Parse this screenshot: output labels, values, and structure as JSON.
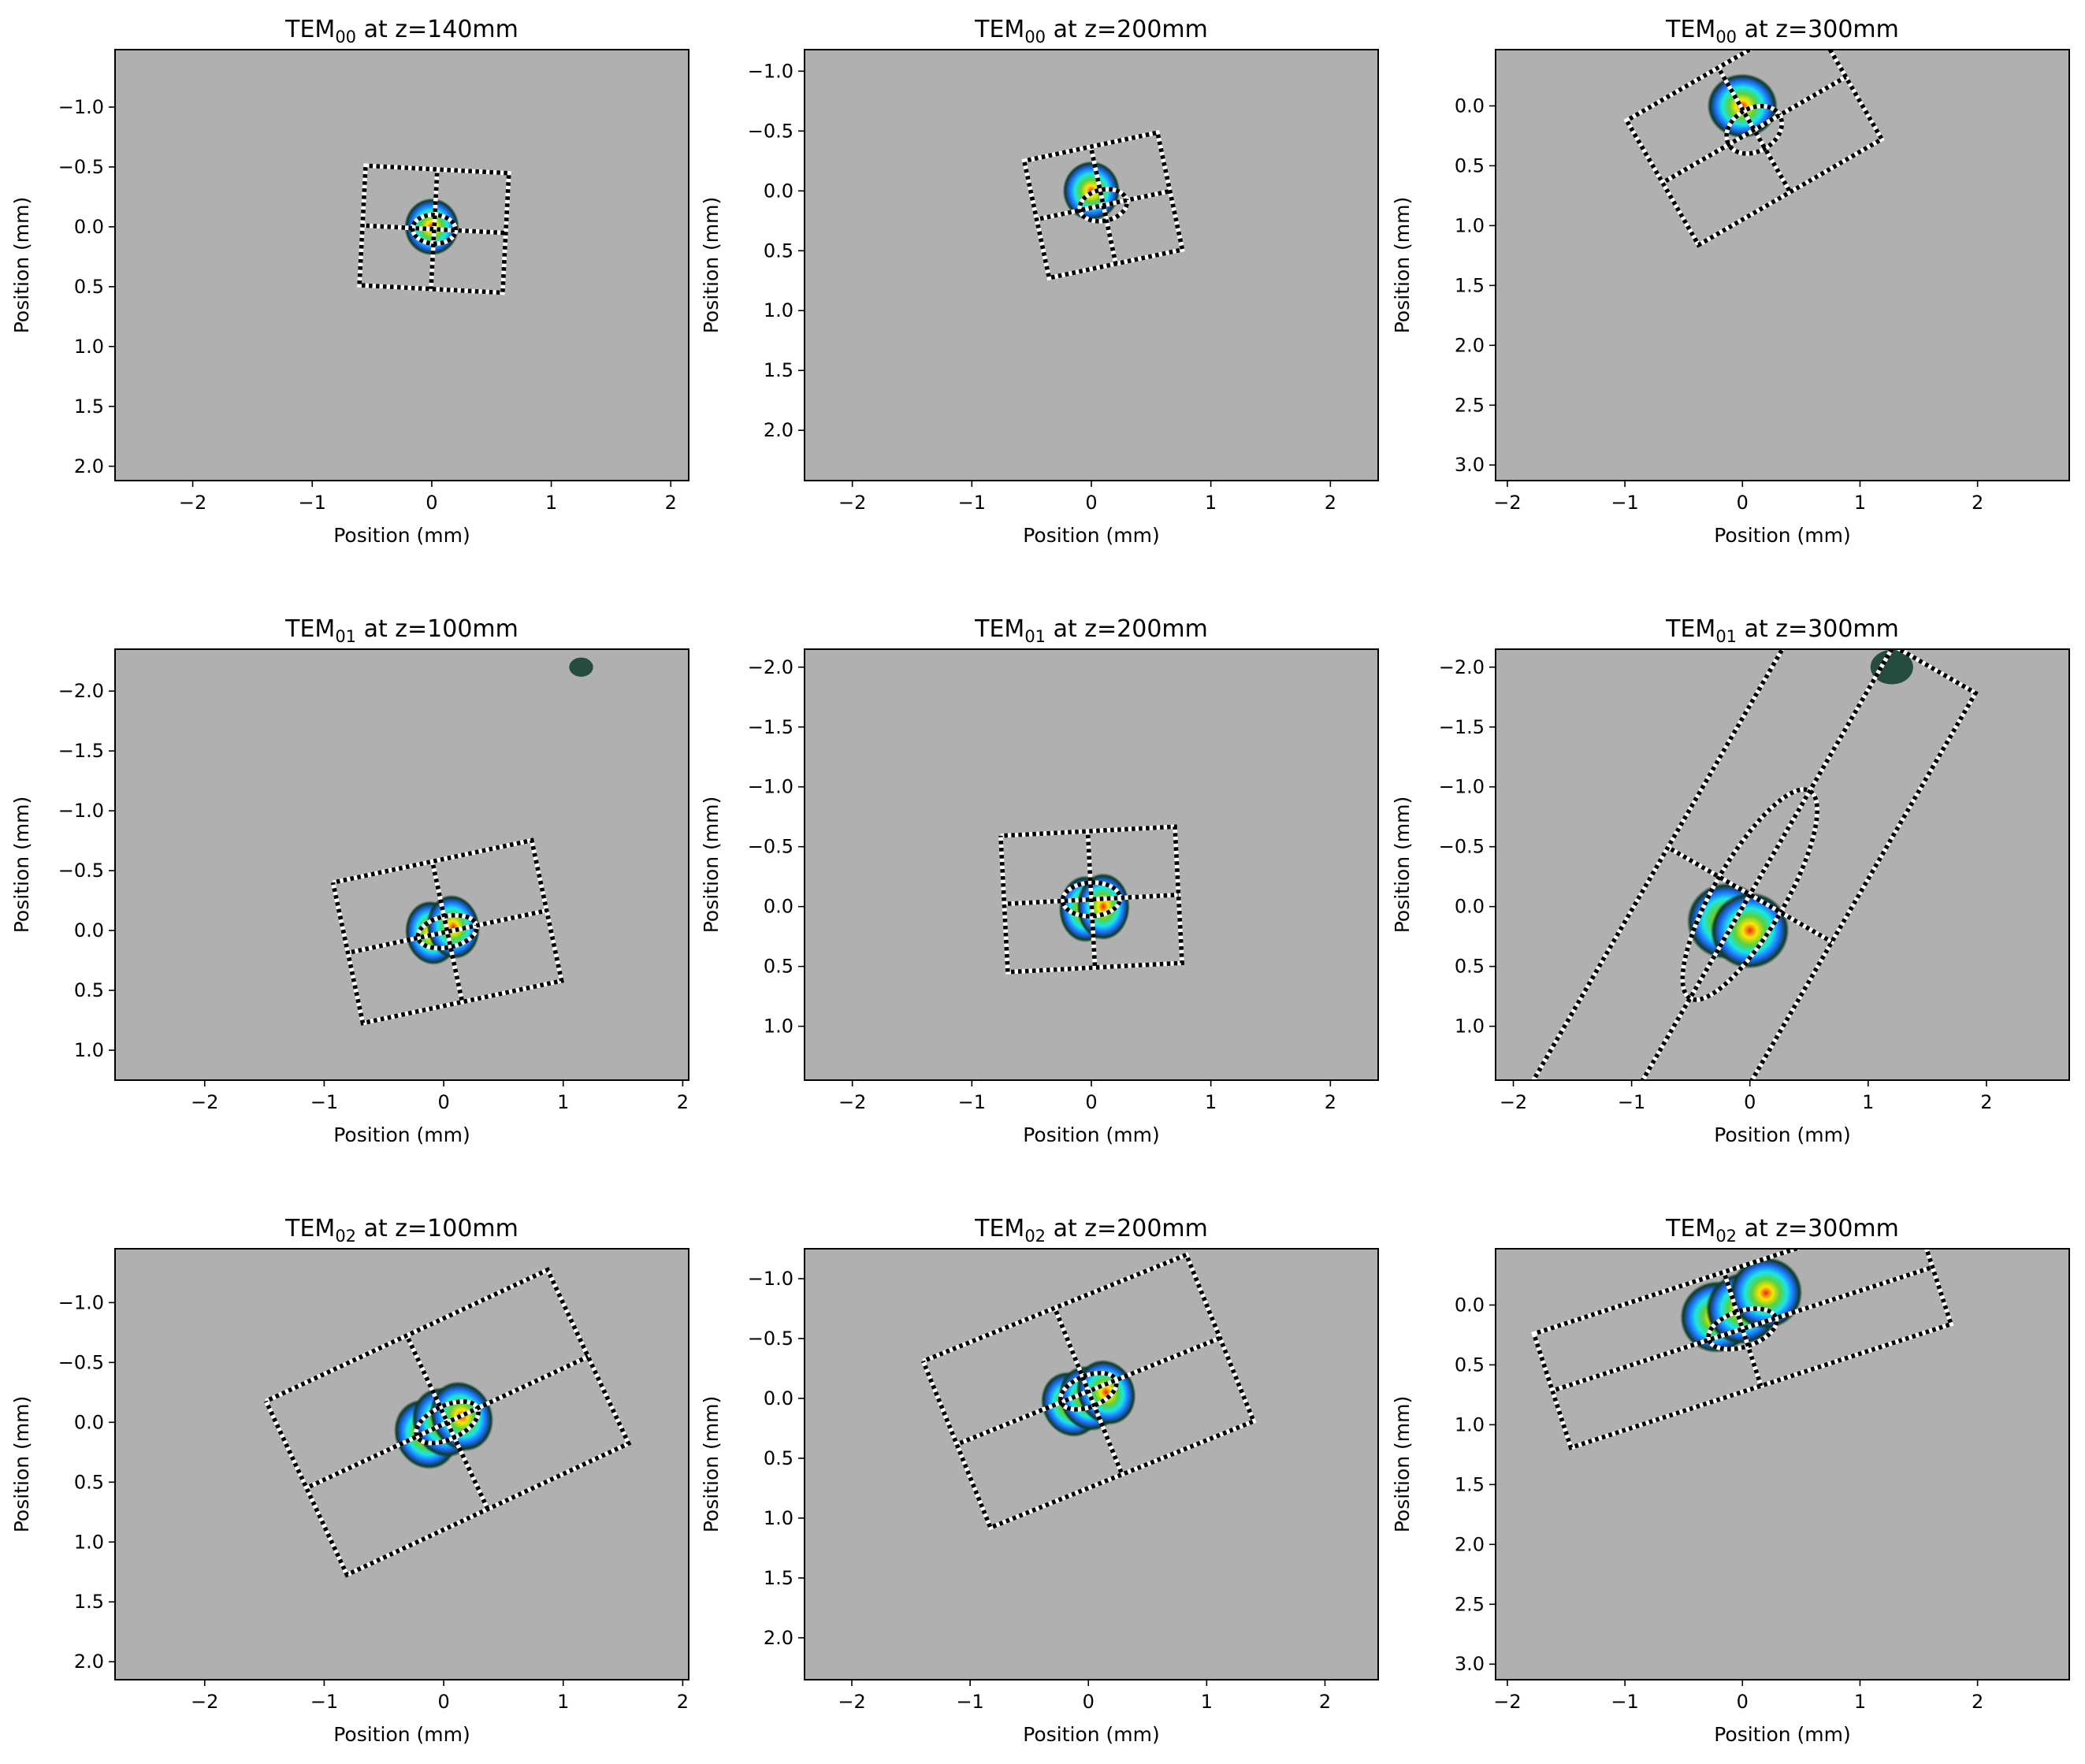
{
  "figure": {
    "colors": {
      "background": "#b0b0b0",
      "overlay_dark": "#000000",
      "overlay_light": "#ffffff",
      "beam_outer": "#0d3b2a",
      "beam_blue": "#1e6fff",
      "beam_cyan": "#19e6e6",
      "beam_green": "#5ad13c",
      "beam_yellow": "#ffe600",
      "beam_red": "#e8281e"
    }
  },
  "chart_data": [
    {
      "type": "heatmap",
      "title": {
        "main": "TEM",
        "sub": "00",
        "rest": " at z=140mm"
      },
      "xlabel": "Position (mm)",
      "ylabel": "Position (mm)",
      "xlim": [
        -2.65,
        2.15
      ],
      "ylim": [
        2.12,
        -1.48
      ],
      "xticks": [
        -2,
        -1,
        0,
        1,
        2
      ],
      "xticklabels": [
        "−2",
        "−1",
        "0",
        "1",
        "2"
      ],
      "yticks": [
        -1.0,
        -0.5,
        0.0,
        0.5,
        1.0,
        1.5,
        2.0
      ],
      "yticklabels": [
        "−1.0",
        "−0.5",
        "0.0",
        "0.5",
        "1.0",
        "1.5",
        "2.0"
      ],
      "beam": {
        "lobes": [
          [
            0.0,
            0.0
          ]
        ],
        "rx": 0.23,
        "ry": 0.24,
        "angle": 0
      },
      "box": {
        "cx": 0.02,
        "cy": 0.02,
        "hw": 0.6,
        "hh": 0.5,
        "angle": 3
      },
      "ellipse": {
        "rx": 0.18,
        "ry": 0.12
      }
    },
    {
      "type": "heatmap",
      "title": {
        "main": "TEM",
        "sub": "00",
        "rest": " at z=200mm"
      },
      "xlabel": "Position (mm)",
      "ylabel": "Position (mm)",
      "xlim": [
        -2.4,
        2.4
      ],
      "ylim": [
        2.42,
        -1.18
      ],
      "xticks": [
        -2,
        -1,
        0,
        1,
        2
      ],
      "xticklabels": [
        "−2",
        "−1",
        "0",
        "1",
        "2"
      ],
      "yticks": [
        -1.0,
        -0.5,
        0.0,
        0.5,
        1.0,
        1.5,
        2.0
      ],
      "yticklabels": [
        "−1.0",
        "−0.5",
        "0.0",
        "0.5",
        "1.0",
        "1.5",
        "2.0"
      ],
      "beam": {
        "lobes": [
          [
            0.0,
            0.0
          ]
        ],
        "rx": 0.24,
        "ry": 0.25,
        "angle": 0
      },
      "box": {
        "cx": 0.1,
        "cy": 0.12,
        "hw": 0.57,
        "hh": 0.5,
        "angle": -12
      },
      "ellipse": {
        "rx": 0.2,
        "ry": 0.13
      }
    },
    {
      "type": "heatmap",
      "title": {
        "main": "TEM",
        "sub": "00",
        "rest": " at z=300mm"
      },
      "xlabel": "Position (mm)",
      "ylabel": "Position (mm)",
      "xlim": [
        -2.1,
        2.78
      ],
      "ylim": [
        3.13,
        -0.47
      ],
      "xticks": [
        -2,
        -1,
        0,
        1,
        2
      ],
      "xticklabels": [
        "−2",
        "−1",
        "0",
        "1",
        "2"
      ],
      "yticks": [
        0.0,
        0.5,
        1.0,
        1.5,
        2.0,
        2.5,
        3.0
      ],
      "yticklabels": [
        "0.0",
        "0.5",
        "1.0",
        "1.5",
        "2.0",
        "2.5",
        "3.0"
      ],
      "beam": {
        "lobes": [
          [
            0.0,
            0.0
          ]
        ],
        "rx": 0.3,
        "ry": 0.27,
        "angle": 0
      },
      "box": {
        "cx": 0.1,
        "cy": 0.2,
        "hw": 0.9,
        "hh": 0.6,
        "angle": -30
      },
      "ellipse": {
        "rx": 0.25,
        "ry": 0.18
      }
    },
    {
      "type": "heatmap",
      "title": {
        "main": "TEM",
        "sub": "01",
        "rest": " at z=100mm"
      },
      "xlabel": "Position (mm)",
      "ylabel": "Position (mm)",
      "xlim": [
        -2.75,
        2.05
      ],
      "ylim": [
        1.25,
        -2.35
      ],
      "xticks": [
        -2,
        -1,
        0,
        1,
        2
      ],
      "xticklabels": [
        "−2",
        "−1",
        "0",
        "1",
        "2"
      ],
      "yticks": [
        -2.0,
        -1.5,
        -1.0,
        -0.5,
        0.0,
        0.5,
        1.0
      ],
      "yticklabels": [
        "−2.0",
        "−1.5",
        "−1.0",
        "−0.5",
        "0.0",
        "0.5",
        "1.0"
      ],
      "beam": {
        "lobes": [
          [
            -0.1,
            0.02
          ],
          [
            0.08,
            -0.03
          ]
        ],
        "rx": 0.3,
        "ry": 0.27,
        "angle": -10
      },
      "box": {
        "cx": 0.03,
        "cy": 0.01,
        "hw": 0.85,
        "hh": 0.6,
        "angle": -12
      },
      "ellipse": {
        "rx": 0.25,
        "ry": 0.13
      },
      "ghost": {
        "x": 1.15,
        "y": -2.2,
        "r": 0.1
      }
    },
    {
      "type": "heatmap",
      "title": {
        "main": "TEM",
        "sub": "01",
        "rest": " at z=200mm"
      },
      "xlabel": "Position (mm)",
      "ylabel": "Position (mm)",
      "xlim": [
        -2.4,
        2.4
      ],
      "ylim": [
        1.45,
        -2.15
      ],
      "xticks": [
        -2,
        -1,
        0,
        1,
        2
      ],
      "xticklabels": [
        "−2",
        "−1",
        "0",
        "1",
        "2"
      ],
      "yticks": [
        -2.0,
        -1.5,
        -1.0,
        -0.5,
        0.0,
        0.5,
        1.0
      ],
      "yticklabels": [
        "−2.0",
        "−1.5",
        "−1.0",
        "−0.5",
        "0.0",
        "0.5",
        "1.0"
      ],
      "beam": {
        "lobes": [
          [
            -0.05,
            0.02
          ],
          [
            0.1,
            0.0
          ]
        ],
        "rx": 0.3,
        "ry": 0.28,
        "angle": 0
      },
      "box": {
        "cx": 0.0,
        "cy": -0.06,
        "hw": 0.73,
        "hh": 0.57,
        "angle": -3
      },
      "ellipse": {
        "rx": 0.24,
        "ry": 0.14
      }
    },
    {
      "type": "heatmap",
      "title": {
        "main": "TEM",
        "sub": "01",
        "rest": " at z=300mm"
      },
      "xlabel": "Position (mm)",
      "ylabel": "Position (mm)",
      "xlim": [
        -2.15,
        2.7
      ],
      "ylim": [
        1.45,
        -2.15
      ],
      "xticks": [
        -2,
        -1,
        0,
        1,
        2
      ],
      "xticklabels": [
        "−2",
        "−1",
        "0",
        "1",
        "2"
      ],
      "yticks": [
        -2.0,
        -1.5,
        -1.0,
        -0.5,
        0.0,
        0.5,
        1.0
      ],
      "yticklabels": [
        "−2.0",
        "−1.5",
        "−1.0",
        "−0.5",
        "0.0",
        "0.5",
        "1.0"
      ],
      "beam": {
        "lobes": [
          [
            -0.2,
            0.12
          ],
          [
            0.0,
            0.2
          ]
        ],
        "rx": 0.45,
        "ry": 0.32,
        "angle": -10
      },
      "box": {
        "cx": 0.0,
        "cy": -0.1,
        "hw": 0.8,
        "hh": 2.4,
        "angle": 30
      },
      "ellipse": {
        "rx": 0.3,
        "ry": 1.0
      },
      "ghost": {
        "x": 1.2,
        "y": -2.0,
        "r": 0.18
      }
    },
    {
      "type": "heatmap",
      "title": {
        "main": "TEM",
        "sub": "02",
        "rest": " at z=100mm"
      },
      "xlabel": "Position (mm)",
      "ylabel": "Position (mm)",
      "xlim": [
        -2.75,
        2.05
      ],
      "ylim": [
        2.15,
        -1.45
      ],
      "xticks": [
        -2,
        -1,
        0,
        1,
        2
      ],
      "xticklabels": [
        "−2",
        "−1",
        "0",
        "1",
        "2"
      ],
      "yticks": [
        -1.0,
        -0.5,
        0.0,
        0.5,
        1.0,
        1.5,
        2.0
      ],
      "yticklabels": [
        "−1.0",
        "−0.5",
        "0.0",
        "0.5",
        "1.0",
        "1.5",
        "2.0"
      ],
      "beam": {
        "lobes": [
          [
            -0.15,
            0.1
          ],
          [
            0.0,
            0.0
          ],
          [
            0.15,
            -0.05
          ]
        ],
        "rx": 0.35,
        "ry": 0.3,
        "angle": -25
      },
      "box": {
        "cx": 0.03,
        "cy": 0.0,
        "hw": 1.3,
        "hh": 0.8,
        "angle": -25
      },
      "ellipse": {
        "rx": 0.28,
        "ry": 0.14
      }
    },
    {
      "type": "heatmap",
      "title": {
        "main": "TEM",
        "sub": "02",
        "rest": " at z=200mm"
      },
      "xlabel": "Position (mm)",
      "ylabel": "Position (mm)",
      "xlim": [
        -2.4,
        2.45
      ],
      "ylim": [
        2.35,
        -1.25
      ],
      "xticks": [
        -2,
        -1,
        0,
        1,
        2
      ],
      "xticklabels": [
        "−2",
        "−1",
        "0",
        "1",
        "2"
      ],
      "yticks": [
        -1.0,
        -0.5,
        0.0,
        0.5,
        1.0,
        1.5,
        2.0
      ],
      "yticklabels": [
        "−1.0",
        "−0.5",
        "0.0",
        "0.5",
        "1.0",
        "1.5",
        "2.0"
      ],
      "beam": {
        "lobes": [
          [
            -0.15,
            0.05
          ],
          [
            0.0,
            0.0
          ],
          [
            0.15,
            -0.05
          ]
        ],
        "rx": 0.33,
        "ry": 0.28,
        "angle": -25
      },
      "box": {
        "cx": 0.0,
        "cy": -0.06,
        "hw": 1.2,
        "hh": 0.75,
        "angle": -22
      },
      "ellipse": {
        "rx": 0.25,
        "ry": 0.13
      }
    },
    {
      "type": "heatmap",
      "title": {
        "main": "TEM",
        "sub": "02",
        "rest": " at z=300mm"
      },
      "xlabel": "Position (mm)",
      "ylabel": "Position (mm)",
      "xlim": [
        -2.1,
        2.78
      ],
      "ylim": [
        3.13,
        -0.47
      ],
      "xticks": [
        -2,
        -1,
        0,
        1,
        2
      ],
      "xticklabels": [
        "−2",
        "−1",
        "0",
        "1",
        "2"
      ],
      "yticks": [
        0.0,
        0.5,
        1.0,
        1.5,
        2.0,
        2.5,
        3.0
      ],
      "yticklabels": [
        "0.0",
        "0.5",
        "1.0",
        "1.5",
        "2.0",
        "2.5",
        "3.0"
      ],
      "beam": {
        "lobes": [
          [
            -0.22,
            0.1
          ],
          [
            0.0,
            0.03
          ],
          [
            0.2,
            -0.1
          ]
        ],
        "rx": 0.42,
        "ry": 0.3,
        "angle": -20
      },
      "box": {
        "cx": 0.0,
        "cy": 0.2,
        "hw": 1.7,
        "hh": 0.5,
        "angle": -18
      },
      "ellipse": {
        "rx": 0.3,
        "ry": 0.15
      }
    }
  ]
}
